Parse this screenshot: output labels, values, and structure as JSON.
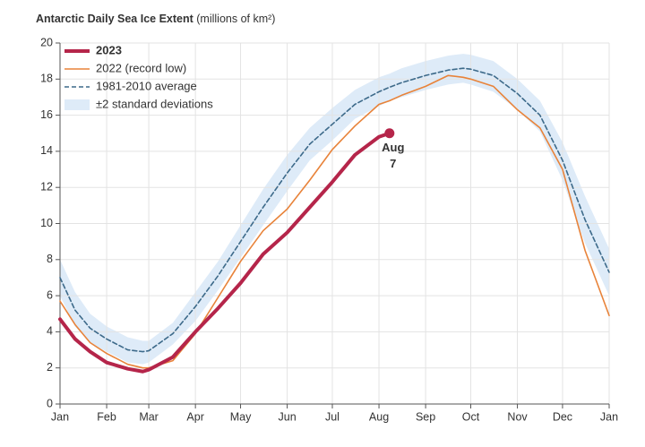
{
  "chart_data": {
    "type": "line",
    "title": "Antarctic Daily Sea Ice Extent",
    "y_label": "(millions of km²)",
    "x": [
      0,
      10,
      20,
      31,
      45,
      55,
      59,
      75,
      90,
      105,
      120,
      135,
      151,
      166,
      181,
      196,
      212,
      219,
      227,
      243,
      258,
      268,
      273,
      288,
      304,
      319,
      334,
      349,
      365
    ],
    "xlim": [
      0,
      365
    ],
    "xticks": [
      {
        "value": 0,
        "label": "Jan"
      },
      {
        "value": 31,
        "label": "Feb"
      },
      {
        "value": 59,
        "label": "Mar"
      },
      {
        "value": 90,
        "label": "Apr"
      },
      {
        "value": 120,
        "label": "May"
      },
      {
        "value": 151,
        "label": "Jun"
      },
      {
        "value": 181,
        "label": "Jul"
      },
      {
        "value": 212,
        "label": "Aug"
      },
      {
        "value": 243,
        "label": "Sep"
      },
      {
        "value": 273,
        "label": "Oct"
      },
      {
        "value": 304,
        "label": "Nov"
      },
      {
        "value": 334,
        "label": "Dec"
      },
      {
        "value": 365,
        "label": "Jan"
      }
    ],
    "ylim": [
      0,
      20
    ],
    "yticks": [
      0,
      2,
      4,
      6,
      8,
      10,
      12,
      14,
      16,
      18,
      20
    ],
    "grid": true,
    "legend": "top-left",
    "series": [
      {
        "name": "2023",
        "color": "#b5254a",
        "width": 4,
        "values": [
          4.7,
          3.6,
          2.9,
          2.3,
          1.95,
          1.8,
          1.9,
          2.6,
          4.0,
          5.3,
          6.7,
          8.3,
          9.5,
          10.9,
          12.3,
          13.8,
          14.8,
          15.0,
          null,
          null,
          null,
          null,
          null,
          null,
          null,
          null,
          null,
          null,
          null
        ]
      },
      {
        "name": "2022 (record low)",
        "color": "#e8833a",
        "width": 1.6,
        "values": [
          5.7,
          4.4,
          3.4,
          2.8,
          2.2,
          2.0,
          2.0,
          2.4,
          3.9,
          5.9,
          7.9,
          9.6,
          10.8,
          12.4,
          14.1,
          15.4,
          16.6,
          16.8,
          17.1,
          17.6,
          18.2,
          18.1,
          18.0,
          17.6,
          16.3,
          15.3,
          13.0,
          8.5,
          4.9
        ]
      },
      {
        "name": "1981-2010 average",
        "color": "#3d6a8a",
        "width": 1.6,
        "dashed": true,
        "values": [
          7.0,
          5.2,
          4.2,
          3.6,
          3.0,
          2.9,
          2.95,
          3.9,
          5.4,
          7.1,
          9.0,
          10.9,
          12.8,
          14.4,
          15.5,
          16.6,
          17.3,
          17.55,
          17.8,
          18.2,
          18.5,
          18.6,
          18.55,
          18.2,
          17.2,
          16.0,
          13.5,
          10.2,
          7.3
        ]
      },
      {
        "name": "±2 standard deviations",
        "color": "#deebf8",
        "upper": [
          8.0,
          6.2,
          5.0,
          4.3,
          3.7,
          3.5,
          3.5,
          4.5,
          6.2,
          7.9,
          9.9,
          11.9,
          13.8,
          15.3,
          16.4,
          17.4,
          18.1,
          18.3,
          18.6,
          19.0,
          19.3,
          19.4,
          19.35,
          19.0,
          18.0,
          16.8,
          14.5,
          11.5,
          8.6
        ],
        "lower": [
          6.0,
          4.3,
          3.4,
          2.9,
          2.3,
          2.2,
          2.3,
          3.3,
          4.6,
          6.3,
          8.1,
          9.9,
          11.8,
          13.5,
          14.6,
          15.8,
          16.5,
          16.8,
          17.0,
          17.4,
          17.7,
          17.8,
          17.7,
          17.3,
          16.3,
          15.1,
          12.4,
          8.9,
          6.0
        ]
      }
    ],
    "annotation": [
      "Aug",
      "7"
    ]
  }
}
